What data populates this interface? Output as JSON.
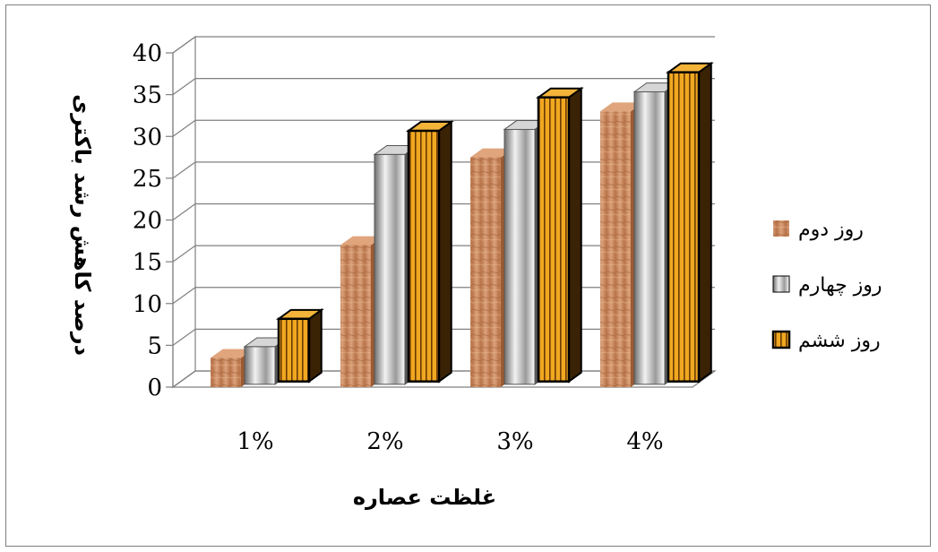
{
  "chart_data": {
    "type": "bar",
    "categories": [
      "1%",
      "2%",
      "3%",
      "4%"
    ],
    "series": [
      {
        "name": "روز دوم",
        "values": [
          3.5,
          17,
          27.5,
          33
        ],
        "color": "#c8895a"
      },
      {
        "name": "روز چهارم",
        "values": [
          4.5,
          27.5,
          30.5,
          35
        ],
        "color": "#b0b0b0"
      },
      {
        "name": "روز ششم",
        "values": [
          7.5,
          30,
          34,
          37
        ],
        "color": "#e8a21a"
      }
    ],
    "xlabel": "غلظت عصاره",
    "ylabel": "درصد کاهش رشد باکتری",
    "ylim": [
      0,
      40
    ],
    "yticks": [
      0,
      5,
      10,
      15,
      20,
      25,
      30,
      35,
      40
    ],
    "grid": true,
    "legend": "right"
  }
}
